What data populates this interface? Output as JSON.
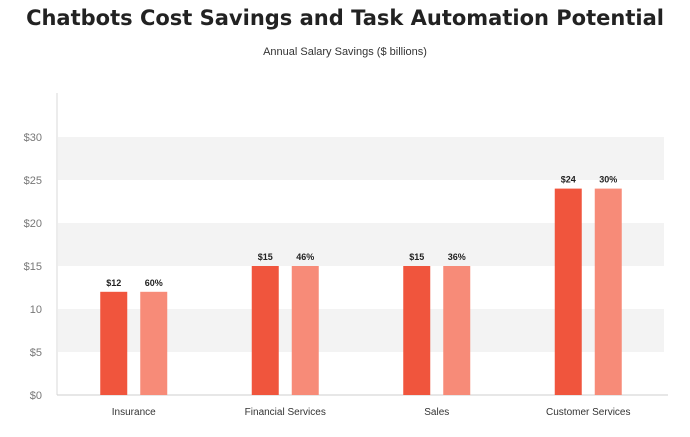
{
  "chart_data": {
    "type": "bar",
    "title": "Chatbots Cost Savings and Task Automation Potential",
    "subtitle": "Annual Salary Savings ($ billions)",
    "categories": [
      "Insurance",
      "Financial Services",
      "Sales",
      "Customer Services"
    ],
    "series": [
      {
        "values": [
          12,
          15,
          15,
          24
        ],
        "labels": [
          "$12",
          "$15",
          "$15",
          "$24"
        ],
        "color": "#f0553d"
      },
      {
        "values": [
          12,
          15,
          15,
          24
        ],
        "labels": [
          "60%",
          "46%",
          "36%",
          "30%"
        ],
        "color": "#f78b78"
      }
    ],
    "ylim": [
      0,
      30
    ],
    "y_ticks": [
      "$0",
      "$5",
      "10",
      "$15",
      "$20",
      "$25",
      "$30"
    ],
    "grid": "alternating horizontal bands",
    "legend": "none"
  }
}
